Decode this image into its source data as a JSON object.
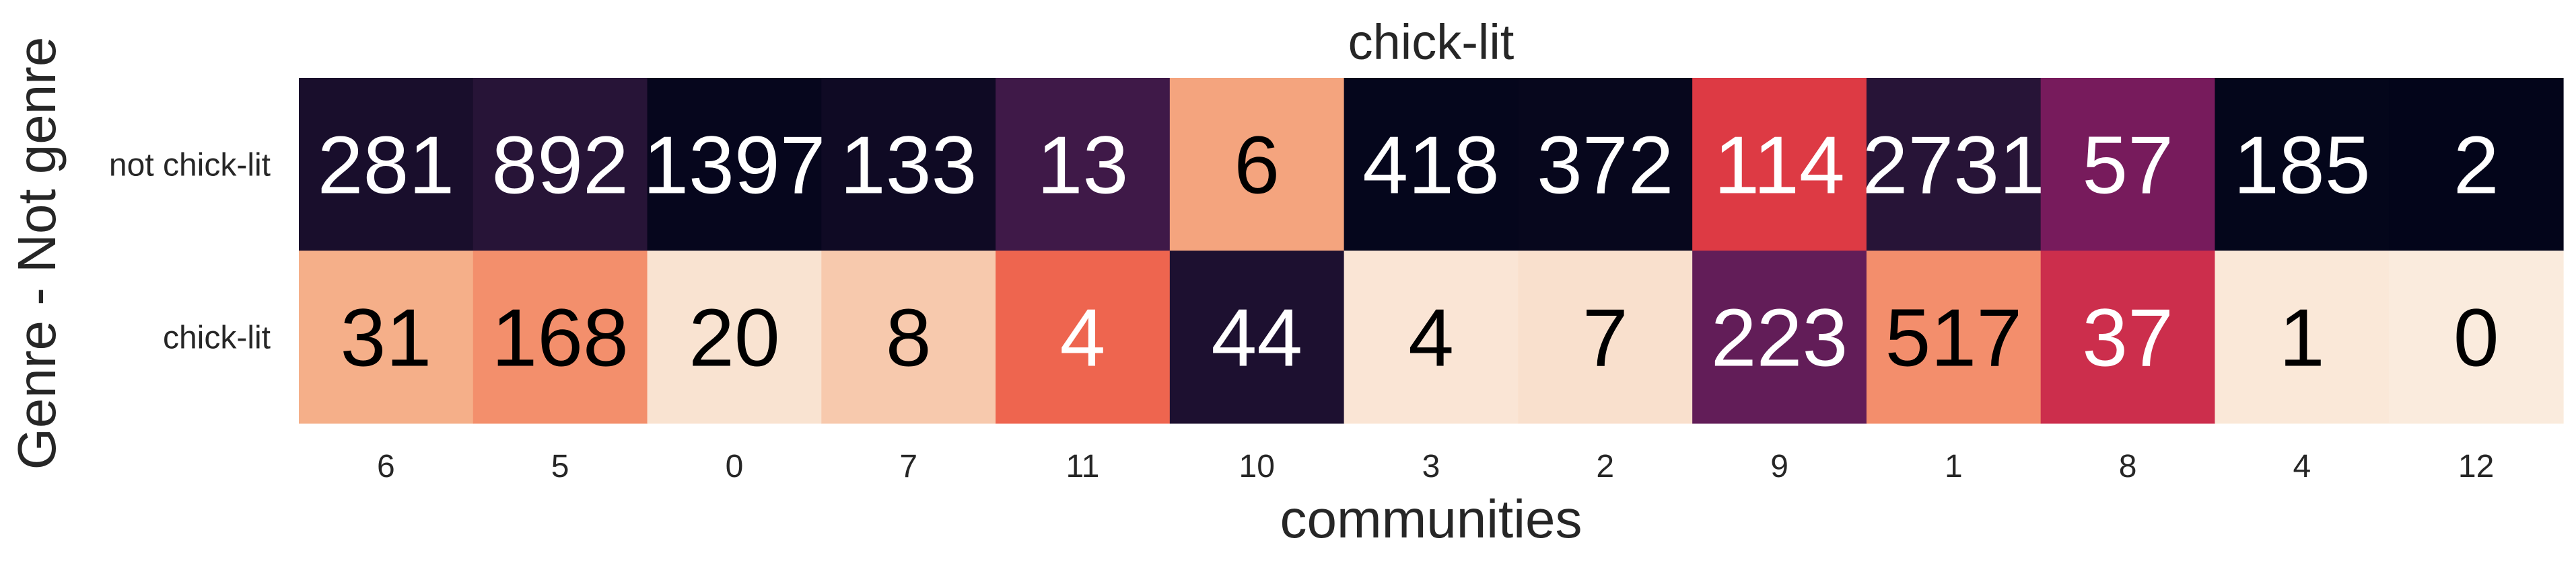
{
  "chart_data": {
    "type": "heatmap",
    "title": "chick-lit",
    "xlabel": "communities",
    "ylabel": "Genre - Not genre",
    "x_categories": [
      "6",
      "5",
      "0",
      "7",
      "11",
      "10",
      "3",
      "2",
      "9",
      "1",
      "8",
      "4",
      "12"
    ],
    "y_categories": [
      "not chick-lit",
      "chick-lit"
    ],
    "values": [
      [
        281,
        892,
        1397,
        133,
        13,
        6,
        418,
        372,
        114,
        2731,
        57,
        185,
        2
      ],
      [
        31,
        168,
        20,
        8,
        4,
        44,
        4,
        7,
        223,
        517,
        37,
        1,
        0
      ]
    ],
    "colormap": "rocket",
    "normalization": "per-column",
    "colorbar": false,
    "grid": false
  }
}
